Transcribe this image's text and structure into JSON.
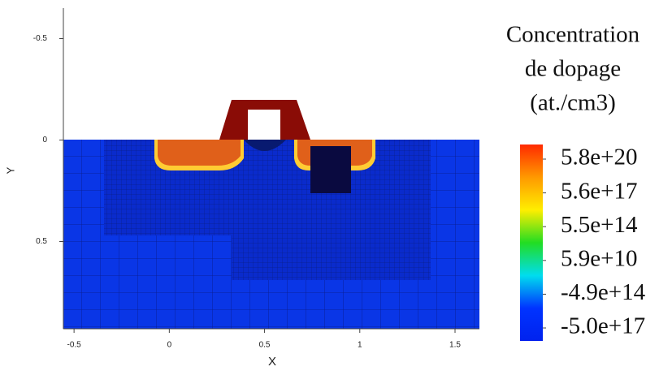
{
  "chart_data": {
    "type": "doping-map",
    "title": [
      "Concentration",
      "de dopage",
      "(at./cm3)"
    ],
    "x_label": "X",
    "y_label": "Y",
    "xlim": [
      -0.556,
      1.628
    ],
    "xticks": [
      -0.5,
      0,
      0.5,
      1,
      1.5
    ],
    "ylim": [
      0.93,
      -0.65
    ],
    "yticks": [
      -0.5,
      0,
      0.5
    ],
    "colorbar": {
      "colors": [
        "#ff2a00",
        "#ff9900",
        "#ffee00",
        "#22dd22",
        "#00ddee",
        "#0033ff",
        "#0022ee"
      ],
      "ticks": [
        {
          "value": 5.8e+20,
          "label": "5.8e+20"
        },
        {
          "value": 5.6e+17,
          "label": "5.6e+17"
        },
        {
          "value": 550000000000000.0,
          "label": "5.5e+14"
        },
        {
          "value": 59000000000.0,
          "label": "5.9e+10"
        },
        {
          "value": -490000000000000.0,
          "label": "-4.9e+14"
        },
        {
          "value": -5e+17,
          "label": "-5.0e+17"
        }
      ]
    }
  }
}
